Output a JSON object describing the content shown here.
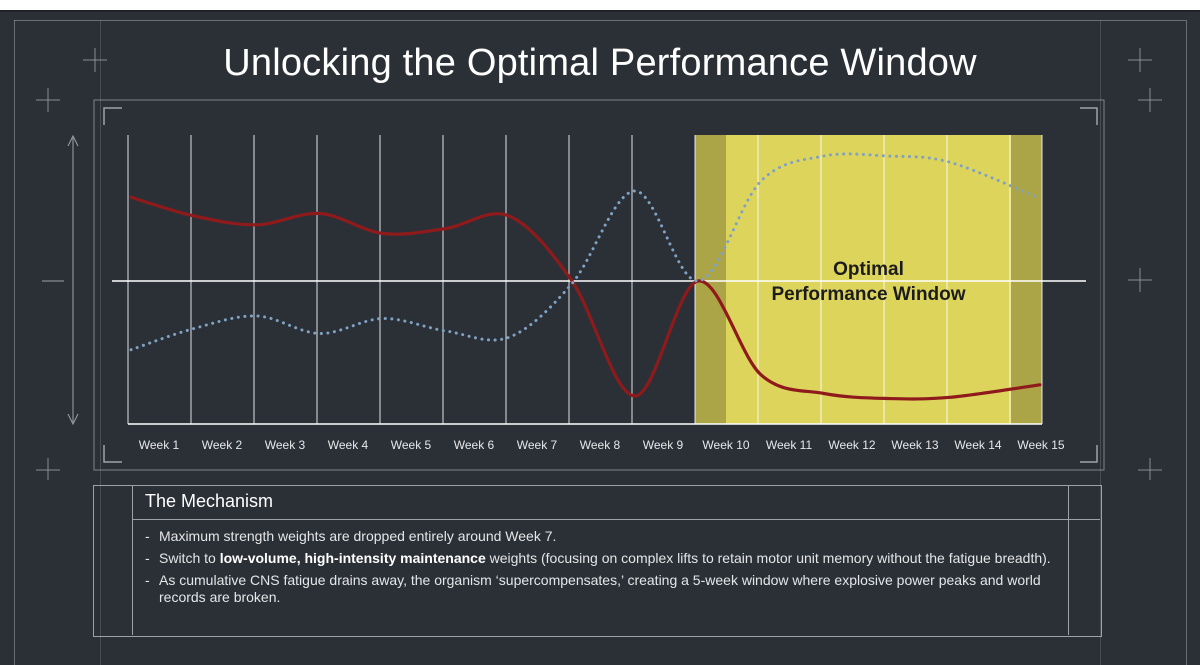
{
  "title": "Unlocking the Optimal Performance Window",
  "chart_data": {
    "type": "line",
    "categories": [
      "Week 1",
      "Week 2",
      "Week 3",
      "Week 4",
      "Week 5",
      "Week 6",
      "Week 7",
      "Week 8",
      "Week 9",
      "Week 10",
      "Week 11",
      "Week 12",
      "Week 13",
      "Week 14",
      "Week 15"
    ],
    "series": [
      {
        "name": "",
        "style": "solid",
        "color": "#8f1a1c",
        "values": [
          0.67,
          0.52,
          0.45,
          0.54,
          0.38,
          0.42,
          0.52,
          0.0,
          -0.92,
          0.0,
          -0.75,
          -0.9,
          -0.94,
          -0.93,
          -0.83
        ]
      },
      {
        "name": "",
        "style": "dotted",
        "color": "#7fa2c4",
        "values": [
          -0.55,
          -0.38,
          -0.28,
          -0.42,
          -0.3,
          -0.4,
          -0.45,
          -0.02,
          0.72,
          0.0,
          0.8,
          1.0,
          1.0,
          0.95,
          0.66
        ]
      }
    ],
    "highlight": {
      "label_line1": "Optimal",
      "label_line2": "Performance Window",
      "from": "Week 10",
      "to": "Week 15",
      "color": "#ddd45c"
    },
    "ylim": [
      -1.2,
      1.2
    ],
    "grid": true,
    "background": "#2b3036"
  },
  "mechanism": {
    "title": "The Mechanism",
    "bullet1": "Maximum strength weights are dropped entirely around Week 7.",
    "bullet2_pre": "Switch to ",
    "bullet2_bold": "low-volume, high-intensity maintenance",
    "bullet2_post": " weights (focusing on complex lifts to retain motor unit memory without the fatigue breadth).",
    "bullet3": "As cumulative CNS fatigue drains away, the organism ‘supercompensates,’ creating a 5-week window where explosive power peaks and world records are broken."
  }
}
